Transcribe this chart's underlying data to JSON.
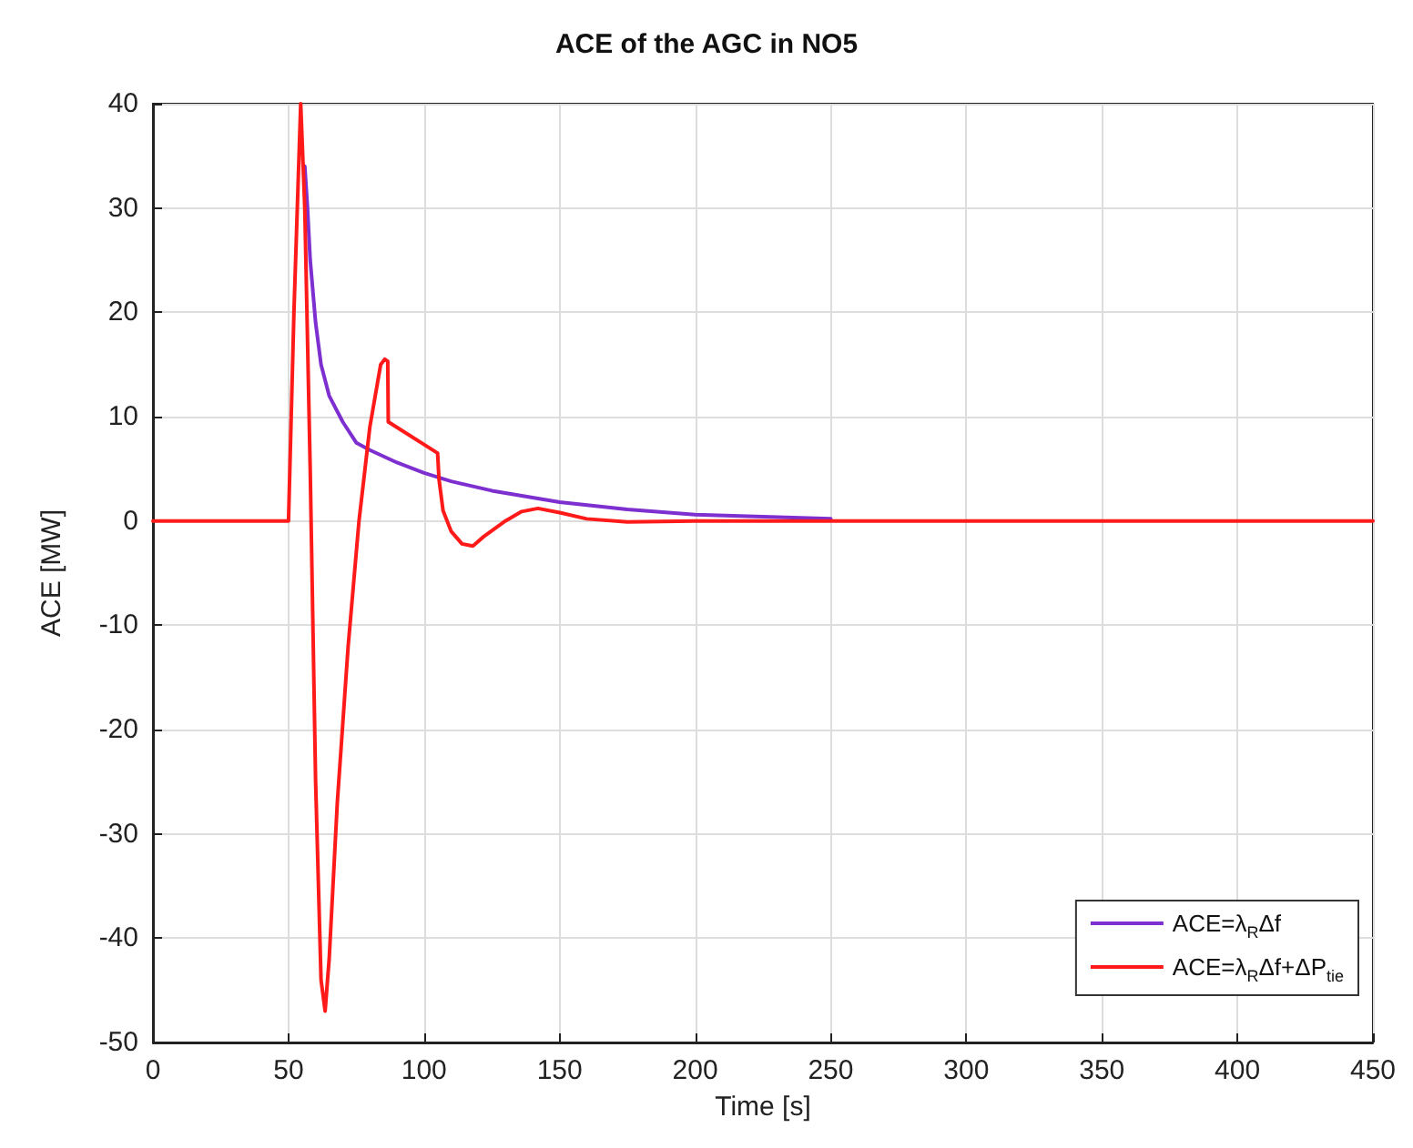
{
  "chart_data": {
    "type": "line",
    "title": "ACE of the AGC in NO5",
    "xlabel": "Time [s]",
    "ylabel": "ACE [MW]",
    "xlim": [
      0,
      450
    ],
    "xticks": [
      0,
      50,
      100,
      150,
      200,
      250,
      300,
      350,
      400,
      450
    ],
    "ylim": [
      -50,
      40
    ],
    "yticks": [
      -50,
      -40,
      -30,
      -20,
      -10,
      0,
      10,
      20,
      30,
      40
    ],
    "grid": true,
    "legend": "bottom right",
    "marker": "none",
    "line_style": "solid",
    "series": [
      {
        "name": "ACE=λ$_{R}$Δf",
        "color": "#7e2fd0",
        "x": [
          56,
          57,
          58,
          60,
          62,
          65,
          70,
          75,
          80,
          90,
          100,
          110,
          125,
          150,
          175,
          200,
          225,
          250
        ],
        "values": [
          34,
          30,
          25,
          19,
          15,
          12,
          9.5,
          7.5,
          6.8,
          5.6,
          4.6,
          3.8,
          2.9,
          1.8,
          1.1,
          0.6,
          0.4,
          0.2
        ]
      },
      {
        "name": "ACE=λ$_{R}$Δf+ΔP$_{tie}$",
        "color": "#ff1a1a",
        "x": [
          0,
          50,
          52,
          54.5,
          56,
          58,
          60,
          62,
          63.5,
          65,
          68,
          72,
          76,
          80,
          84,
          85.5,
          86.6,
          86.8,
          105,
          105.5,
          107,
          110,
          114,
          118,
          122,
          130,
          136,
          142,
          150,
          160,
          175,
          200,
          450
        ],
        "values": [
          0,
          0,
          20,
          40,
          30,
          5,
          -25,
          -44,
          -47,
          -42,
          -27,
          -12,
          0,
          9,
          15,
          15.5,
          15.3,
          9.5,
          6.5,
          4,
          1,
          -1,
          -2.2,
          -2.4,
          -1.5,
          0,
          0.9,
          1.2,
          0.8,
          0.2,
          -0.1,
          0,
          0
        ]
      }
    ]
  }
}
